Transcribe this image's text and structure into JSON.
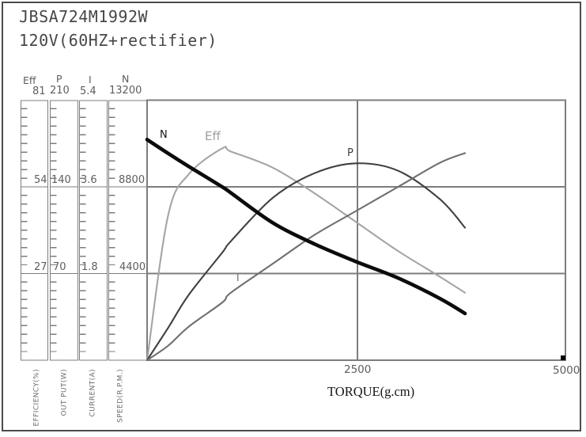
{
  "title": {
    "model": "JBSA724M1992W",
    "spec": "120V(60HZ+rectifier)"
  },
  "axes": [
    {
      "header": "Eff",
      "max": "81",
      "mid": "54",
      "low": "27",
      "unit": "EFFICIENCY(%)"
    },
    {
      "header": "P",
      "max": "210",
      "mid": "140",
      "low": "70",
      "unit": "OUT PUT(W)"
    },
    {
      "header": "I",
      "max": "5.4",
      "mid": "3.6",
      "low": "1.8",
      "unit": "CURRENT(A)"
    },
    {
      "header": "N",
      "max": "13200",
      "mid": "8800",
      "low": "4400",
      "unit": "SPEED(R.P.M.)"
    }
  ],
  "x_axis": {
    "label": "TORQUE(g.cm)",
    "tick_mid": "2500",
    "tick_max": "5000"
  },
  "curve_labels": {
    "n": "N",
    "eff": "Eff",
    "p": "P",
    "i": "I"
  },
  "colors": {
    "frame": "#7d7d7d",
    "outer_border": "#4c4c4c",
    "speed_curve": "#0c0c0c",
    "power_curve": "#404040",
    "current_curve": "#6f6f6f",
    "efficiency_curve": "#a5a5a5"
  },
  "chart_data": {
    "type": "line",
    "title": "JBSA724M1992W motor performance curves",
    "xlabel": "TORQUE(g.cm)",
    "x_range": [
      0,
      5000
    ],
    "x_ticks": [
      2500,
      5000
    ],
    "grid": true,
    "note": "All curves start at zero torque and end near 3800 g.cm; horizontal gridlines at 1/3 and 2/3 of each axis scale",
    "torque": [
      0,
      250,
      500,
      900,
      1000,
      1500,
      2000,
      2500,
      3000,
      3500,
      3800
    ],
    "series": [
      {
        "name": "N",
        "axis": "SPEED(R.P.M.)",
        "axis_max": 13200,
        "axis_ticks": [
          4400,
          8800,
          13200
        ],
        "color": "#0c0c0c",
        "stroke_width": 4.6,
        "values": [
          11200,
          10500,
          9830,
          8790,
          8500,
          6980,
          5900,
          5000,
          4170,
          3130,
          2370
        ]
      },
      {
        "name": "Eff",
        "axis": "EFFICIENCY(%)",
        "axis_max": 81,
        "axis_ticks": [
          27,
          54,
          81
        ],
        "color": "#a5a5a5",
        "stroke_width": 2.1,
        "values": [
          0,
          45,
          58,
          66,
          65,
          60,
          52,
          43,
          34,
          26,
          21
        ],
        "peak": {
          "torque": 900,
          "value": 66
        }
      },
      {
        "name": "P",
        "axis": "OUT PUT(W)",
        "axis_max": 210,
        "axis_ticks": [
          70,
          140,
          210
        ],
        "color": "#404040",
        "stroke_width": 2.1,
        "values": [
          0,
          26,
          53,
          87,
          96,
          131,
          151,
          159,
          153,
          130,
          107
        ],
        "peak": {
          "torque": 2500,
          "value": 160
        }
      },
      {
        "name": "I",
        "axis": "CURRENT(A)",
        "axis_max": 5.4,
        "axis_ticks": [
          1.8,
          3.6,
          5.4
        ],
        "color": "#6f6f6f",
        "stroke_width": 2.1,
        "values": [
          0,
          0.3,
          0.7,
          1.2,
          1.4,
          2.0,
          2.6,
          3.1,
          3.6,
          4.1,
          4.3
        ]
      }
    ]
  }
}
